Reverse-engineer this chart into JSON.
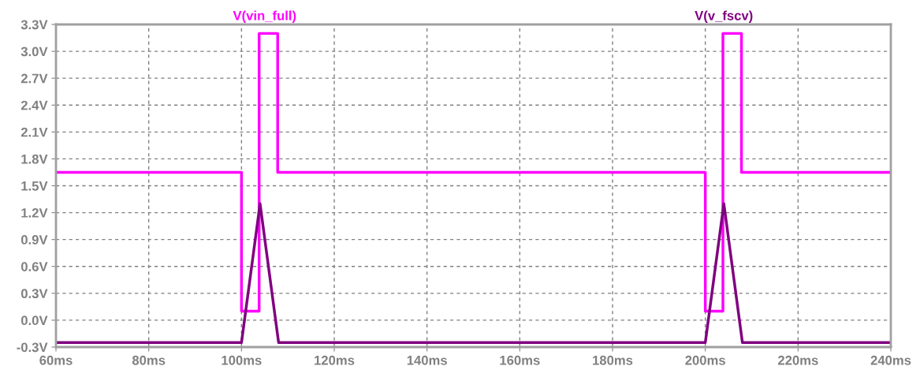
{
  "chart_data": {
    "type": "line",
    "grid": true,
    "xlim": [
      60,
      240
    ],
    "ylim": [
      -0.3,
      3.3
    ],
    "xticks": [
      {
        "value": 60,
        "label": "60ms"
      },
      {
        "value": 80,
        "label": "80ms"
      },
      {
        "value": 100,
        "label": "100ms"
      },
      {
        "value": 120,
        "label": "120ms"
      },
      {
        "value": 140,
        "label": "140ms"
      },
      {
        "value": 160,
        "label": "160ms"
      },
      {
        "value": 180,
        "label": "180ms"
      },
      {
        "value": 200,
        "label": "200ms"
      },
      {
        "value": 220,
        "label": "220ms"
      },
      {
        "value": 240,
        "label": "240ms"
      }
    ],
    "yticks": [
      {
        "value": -0.3,
        "label": "-0.3V"
      },
      {
        "value": 0.0,
        "label": "0.0V"
      },
      {
        "value": 0.3,
        "label": "0.3V"
      },
      {
        "value": 0.6,
        "label": "0.6V"
      },
      {
        "value": 0.9,
        "label": "0.9V"
      },
      {
        "value": 1.2,
        "label": "1.2V"
      },
      {
        "value": 1.5,
        "label": "1.5V"
      },
      {
        "value": 1.8,
        "label": "1.8V"
      },
      {
        "value": 2.1,
        "label": "2.1V"
      },
      {
        "value": 2.4,
        "label": "2.4V"
      },
      {
        "value": 2.7,
        "label": "2.7V"
      },
      {
        "value": 3.0,
        "label": "3.0V"
      },
      {
        "value": 3.3,
        "label": "3.3V"
      }
    ],
    "series": [
      {
        "name": "V(vin_full)",
        "color": "#ff00ff",
        "x": [
          60,
          100,
          100,
          103.8,
          103.8,
          107.8,
          107.8,
          200,
          200,
          203.8,
          203.8,
          207.8,
          207.8,
          240
        ],
        "values": [
          1.65,
          1.65,
          0.1,
          0.1,
          3.2,
          3.2,
          1.65,
          1.65,
          0.1,
          0.1,
          3.2,
          3.2,
          1.65,
          1.65
        ]
      },
      {
        "name": "V(v_fscv)",
        "color": "#800080",
        "x": [
          60,
          100,
          104,
          108,
          200,
          204,
          208,
          240
        ],
        "values": [
          -0.25,
          -0.25,
          1.3,
          -0.25,
          -0.25,
          1.3,
          -0.25,
          -0.25
        ]
      }
    ]
  }
}
